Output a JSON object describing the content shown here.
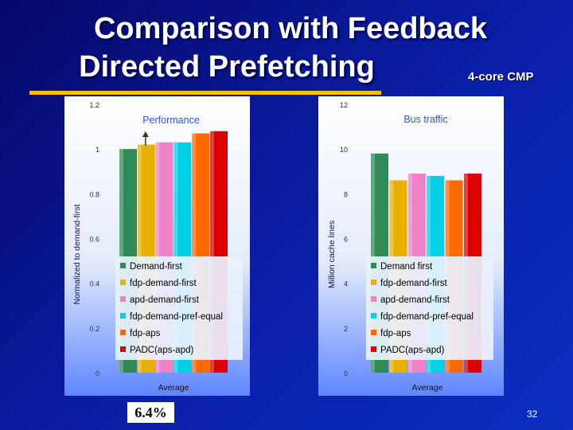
{
  "slide": {
    "title_line1": "Comparison with Feedback",
    "title_line2": "Directed Prefetching",
    "subtitle": "4-core CMP",
    "highlight": "6.4%",
    "page_number": "32"
  },
  "colors": {
    "accent_underline": "#f2c300",
    "series": [
      "#2e8b57",
      "#e8b000",
      "#ee82c8",
      "#00d0e6",
      "#ff6a00",
      "#dd0000"
    ]
  },
  "chart_data": [
    {
      "type": "bar",
      "title": "Performance",
      "ylabel": "Normalized to demand-first",
      "xlabel": "",
      "categories": [
        "Average"
      ],
      "ylim": [
        0,
        1.2
      ],
      "yticks": [
        "0",
        "0.2",
        "0.4",
        "0.6",
        "0.8",
        "1",
        "1.2"
      ],
      "series": [
        {
          "name": "Demand-first",
          "values": [
            1.0
          ]
        },
        {
          "name": "fdp-demand-first",
          "values": [
            1.02
          ]
        },
        {
          "name": "apd-demand-first",
          "values": [
            1.03
          ]
        },
        {
          "name": "fdp-demand-pref-equal",
          "values": [
            1.03
          ]
        },
        {
          "name": "fdp-aps",
          "values": [
            1.07
          ]
        },
        {
          "name": "PADC(aps-apd)",
          "values": [
            1.08
          ]
        }
      ]
    },
    {
      "type": "bar",
      "title": "Bus traffic",
      "ylabel": "Million cache lines",
      "xlabel": "",
      "categories": [
        "Average"
      ],
      "ylim": [
        0,
        12
      ],
      "yticks": [
        "0",
        "2",
        "4",
        "6",
        "8",
        "10",
        "12"
      ],
      "series": [
        {
          "name": "Demand first",
          "values": [
            9.8
          ]
        },
        {
          "name": "fdp-demand-first",
          "values": [
            8.6
          ]
        },
        {
          "name": "apd-demand-first",
          "values": [
            8.9
          ]
        },
        {
          "name": "fdp-demand-pref-equal",
          "values": [
            8.8
          ]
        },
        {
          "name": "fdp-aps",
          "values": [
            8.6
          ]
        },
        {
          "name": "PADC(aps-apd)",
          "values": [
            8.9
          ]
        }
      ]
    }
  ]
}
